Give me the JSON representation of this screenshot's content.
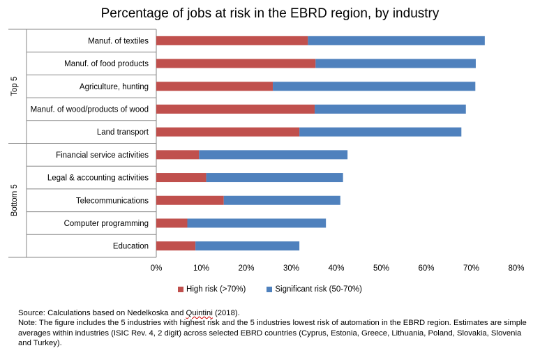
{
  "chart_data": {
    "type": "bar",
    "orientation": "horizontal",
    "stacked": true,
    "title": "Percentage of jobs at risk in the EBRD region, by industry",
    "categories": [
      "Manuf. of textiles",
      "Manuf. of food products",
      "Agriculture, hunting",
      "Manuf. of wood/products of wood",
      "Land transport",
      "Financial service activities",
      "Legal & accounting activities",
      "Telecommunications",
      "Computer programming",
      "Education"
    ],
    "groups": [
      {
        "name": "Top 5",
        "start": 0,
        "end": 4
      },
      {
        "name": "Bottom 5",
        "start": 5,
        "end": 9
      }
    ],
    "series": [
      {
        "name": "High risk (>70%)",
        "color": "#c0504d",
        "values": [
          33.7,
          35.4,
          25.9,
          35.2,
          31.8,
          9.5,
          11.1,
          15.0,
          6.9,
          8.7
        ]
      },
      {
        "name": "Significant risk (50-70%)",
        "color": "#4f81bd",
        "values": [
          39.3,
          35.6,
          45.0,
          33.6,
          36.0,
          33.0,
          30.4,
          25.9,
          30.8,
          23.1
        ]
      }
    ],
    "xticks": [
      "0%",
      "10%",
      "20%",
      "30%",
      "40%",
      "50%",
      "60%",
      "70%",
      "80%"
    ],
    "xlim": [
      0,
      80
    ],
    "legend_position": "bottom"
  },
  "notes": {
    "source_prefix": "Source: Calculations based on Nedelkoska and ",
    "source_underlined": "Quintini",
    "source_suffix": " (2018).",
    "note": "Note: The figure includes the 5 industries with highest  risk and the 5 industries lowest risk of automation in the EBRD region. Estimates are simple averages within industries (ISIC Rev. 4, 2 digit) across selected EBRD countries (Cyprus, Estonia, Greece, Lithuania, Poland, Slovakia, Slovenia and Turkey)."
  }
}
